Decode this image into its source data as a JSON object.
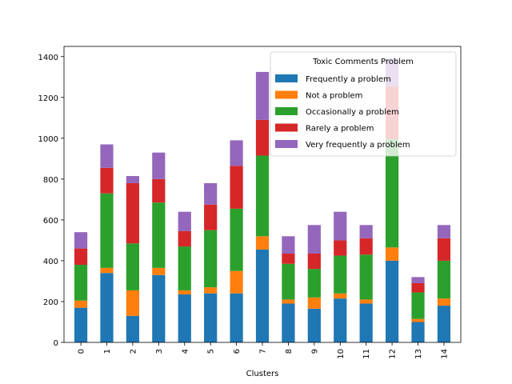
{
  "chart_data": {
    "type": "bar",
    "stacked": true,
    "categories": [
      "0",
      "1",
      "2",
      "3",
      "4",
      "5",
      "6",
      "7",
      "8",
      "9",
      "10",
      "11",
      "12",
      "13",
      "14"
    ],
    "xlabel": "Clusters",
    "ylabel": "",
    "ylim": [
      0,
      1450
    ],
    "yticks": [
      0,
      200,
      400,
      600,
      800,
      1000,
      1200,
      1400
    ],
    "legend": {
      "title": "Toxic Comments Problem",
      "placement": "top-right"
    },
    "series": [
      {
        "name": "Frequently a problem",
        "color": "#1f77b4",
        "values": [
          170,
          340,
          130,
          330,
          235,
          240,
          240,
          455,
          190,
          165,
          215,
          190,
          400,
          100,
          180
        ]
      },
      {
        "name": "Not a problem",
        "color": "#ff7f0e",
        "values": [
          35,
          25,
          125,
          35,
          20,
          30,
          110,
          65,
          20,
          55,
          25,
          20,
          65,
          15,
          35
        ]
      },
      {
        "name": "Occasionally a problem",
        "color": "#2ca02c",
        "values": [
          175,
          365,
          230,
          320,
          215,
          280,
          305,
          395,
          175,
          140,
          185,
          220,
          530,
          130,
          185
        ]
      },
      {
        "name": "Rarely a problem",
        "color": "#d62728",
        "values": [
          80,
          125,
          295,
          115,
          75,
          125,
          210,
          175,
          50,
          75,
          75,
          80,
          260,
          45,
          110
        ]
      },
      {
        "name": "Very frequently a problem",
        "color": "#9467bd",
        "values": [
          80,
          115,
          35,
          130,
          95,
          105,
          125,
          235,
          85,
          140,
          140,
          65,
          135,
          30,
          65
        ]
      }
    ]
  }
}
